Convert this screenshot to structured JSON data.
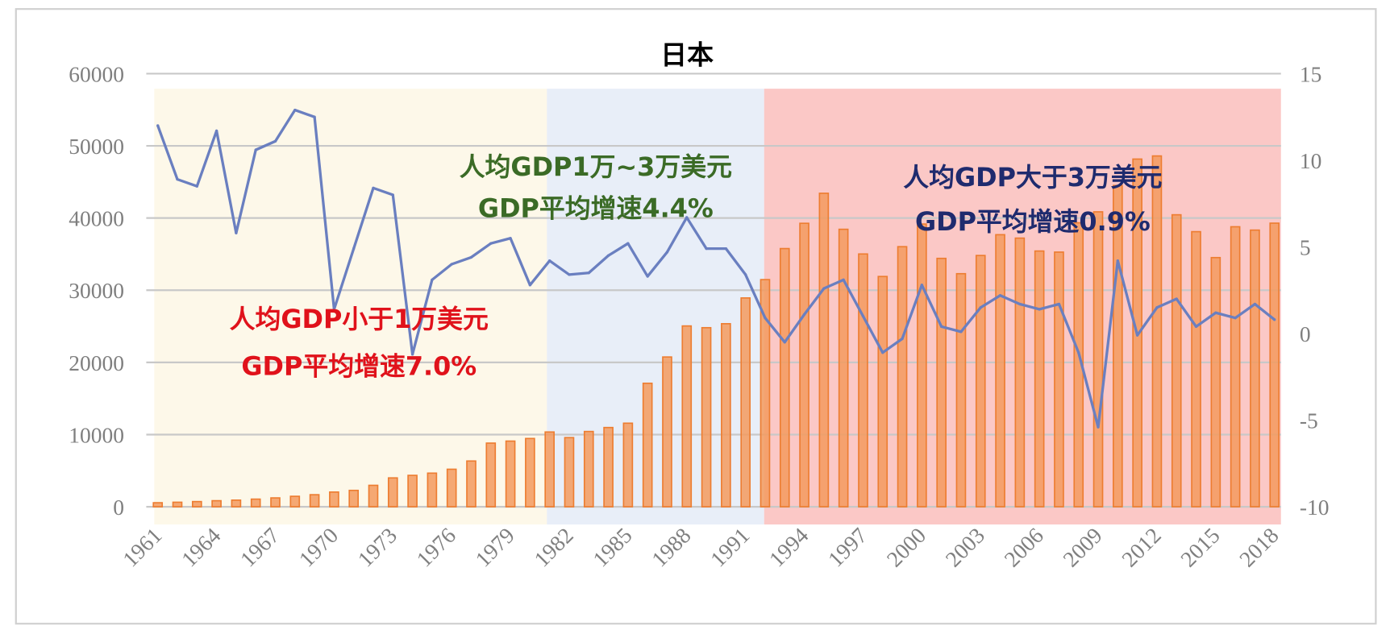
{
  "chart_data": {
    "type": "bar+line",
    "title": "日本",
    "x": [
      1961,
      1962,
      1963,
      1964,
      1965,
      1966,
      1967,
      1968,
      1969,
      1970,
      1971,
      1972,
      1973,
      1974,
      1975,
      1976,
      1977,
      1978,
      1979,
      1980,
      1981,
      1982,
      1983,
      1984,
      1985,
      1986,
      1987,
      1988,
      1989,
      1990,
      1991,
      1992,
      1993,
      1994,
      1995,
      1996,
      1997,
      1998,
      1999,
      2000,
      2001,
      2002,
      2003,
      2004,
      2005,
      2006,
      2007,
      2008,
      2009,
      2010,
      2011,
      2012,
      2013,
      2014,
      2015,
      2016,
      2017,
      2018
    ],
    "x_tick_labels": [
      "1961",
      "1964",
      "1967",
      "1970",
      "1973",
      "1976",
      "1979",
      "1982",
      "1985",
      "1988",
      "1991",
      "1994",
      "1997",
      "2000",
      "2003",
      "2006",
      "2009",
      "2012",
      "2015",
      "2018"
    ],
    "series": [
      {
        "type": "bar",
        "axis": "left",
        "color": "#ed7d31",
        "values": [
          560,
          630,
          720,
          840,
          920,
          1060,
          1230,
          1450,
          1670,
          2040,
          2270,
          2970,
          4000,
          4350,
          4660,
          5200,
          6340,
          8820,
          9100,
          9460,
          10360,
          9580,
          10430,
          10980,
          11580,
          17110,
          20750,
          25050,
          24810,
          25360,
          28930,
          31470,
          35770,
          39270,
          43430,
          38440,
          35020,
          31900,
          36030,
          39170,
          34410,
          32290,
          34810,
          37690,
          37220,
          35430,
          35280,
          39340,
          40860,
          44510,
          48170,
          48600,
          40450,
          38110,
          34520,
          38790,
          38330,
          39290
        ]
      },
      {
        "type": "line",
        "axis": "right",
        "color": "#6a7fc0",
        "values": [
          12.0,
          8.9,
          8.5,
          11.7,
          5.8,
          10.6,
          11.1,
          12.9,
          12.5,
          1.4,
          4.9,
          8.4,
          8.0,
          -1.2,
          3.1,
          4.0,
          4.4,
          5.2,
          5.5,
          2.8,
          4.2,
          3.4,
          3.5,
          4.5,
          5.2,
          3.3,
          4.7,
          6.7,
          4.9,
          4.9,
          3.4,
          0.9,
          -0.5,
          1.1,
          2.6,
          3.1,
          1.0,
          -1.1,
          -0.3,
          2.8,
          0.4,
          0.1,
          1.5,
          2.2,
          1.7,
          1.4,
          1.7,
          -1.1,
          -5.4,
          4.2,
          -0.1,
          1.5,
          2.0,
          0.4,
          1.2,
          0.9,
          1.7,
          0.8
        ]
      }
    ],
    "left_axis": {
      "ylim": [
        0,
        60000
      ],
      "ticks": [
        "0",
        "10000",
        "20000",
        "30000",
        "40000",
        "50000",
        "60000"
      ]
    },
    "right_axis": {
      "ylim": [
        -10,
        15
      ],
      "ticks": [
        "-10",
        "-5",
        "0",
        "5",
        "10",
        "15"
      ]
    },
    "grid": true,
    "regions": [
      {
        "from": 1961,
        "to": 1981,
        "color": "#fdf8e9",
        "label1": "人均GDP小于1万美元",
        "label2": "GDP平均增速7.0%",
        "text_color": "#e0121b"
      },
      {
        "from": 1981,
        "to": 1992,
        "color": "#e8eef8",
        "label1": "人均GDP1万~3万美元",
        "label2": "GDP平均增速4.4%",
        "text_color": "#3b6b26"
      },
      {
        "from": 1992,
        "to": 2018,
        "color": "#fbc8c6",
        "label1": "人均GDP大于3万美元",
        "label2": "GDP平均增速0.9%",
        "text_color": "#1f2b6e"
      }
    ]
  }
}
